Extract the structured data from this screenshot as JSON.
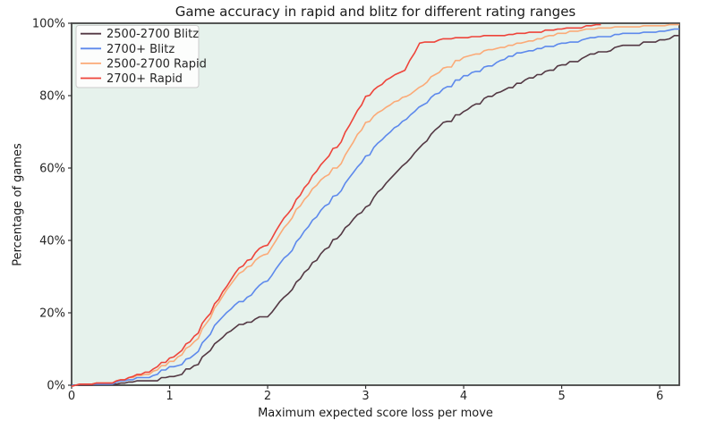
{
  "chart_data": {
    "type": "line",
    "title": "Game accuracy in rapid and blitz for different rating ranges",
    "xlabel": "Maximum expected score loss per move",
    "ylabel": "Percentage of games",
    "xlim": [
      0,
      6.2
    ],
    "ylim": [
      0,
      100
    ],
    "x_ticks": [
      0,
      1,
      2,
      3,
      4,
      5,
      6
    ],
    "y_tick_values": [
      0,
      20,
      40,
      60,
      80,
      100
    ],
    "y_tick_labels": [
      "0%",
      "20%",
      "40%",
      "60%",
      "80%",
      "100%"
    ],
    "grid": false,
    "legend_position": "upper-left",
    "colors": {
      "plot_background": "#e6f2ec",
      "spine": "#444444",
      "tick": "#333333",
      "text": "#262626",
      "legend_border": "#cccccc",
      "legend_background": "#ffffff"
    },
    "series": [
      {
        "name": "2500-2700 Blitz",
        "color": "#533843",
        "x": [
          0,
          0.25,
          0.5,
          0.75,
          1,
          1.25,
          1.5,
          1.75,
          2,
          2.25,
          2.5,
          2.75,
          3,
          3.25,
          3.5,
          3.75,
          4,
          4.25,
          4.5,
          4.75,
          5,
          5.25,
          5.5,
          5.75,
          6,
          6.2
        ],
        "y": [
          0,
          0.1,
          0.3,
          1,
          2,
          5,
          12.5,
          17,
          19,
          26.5,
          35,
          42,
          49,
          57,
          64.5,
          71.5,
          75.5,
          79.5,
          82.5,
          85.5,
          88,
          90.5,
          92.5,
          94,
          95.3,
          96.3
        ]
      },
      {
        "name": "2700+ Blitz",
        "color": "#5d89ec",
        "x": [
          0,
          0.25,
          0.5,
          0.75,
          1,
          1.25,
          1.5,
          1.75,
          2,
          2.25,
          2.5,
          2.75,
          3,
          3.25,
          3.5,
          3.75,
          4,
          4.25,
          4.5,
          4.75,
          5,
          5.25,
          5.5,
          5.75,
          6,
          6.2
        ],
        "y": [
          0,
          0.2,
          0.7,
          2,
          4.5,
          8,
          18,
          23.5,
          29,
          37.5,
          47,
          54,
          63,
          70,
          76,
          81,
          85.2,
          88,
          91,
          92.7,
          94,
          95.2,
          96.2,
          97.1,
          97.8,
          98.2
        ]
      },
      {
        "name": "2500-2700 Rapid",
        "color": "#fbaa77",
        "x": [
          0,
          0.25,
          0.5,
          0.75,
          1,
          1.25,
          1.5,
          1.75,
          2,
          2.25,
          2.5,
          2.75,
          3,
          3.25,
          3.5,
          3.75,
          4,
          4.25,
          4.5,
          4.75,
          5,
          5.25,
          5.5,
          5.75,
          6,
          6.2
        ],
        "y": [
          0,
          0.3,
          1,
          3,
          6,
          11.5,
          23,
          32,
          36.5,
          46.5,
          55.5,
          61.5,
          72.5,
          77.5,
          81.5,
          86.5,
          90.5,
          92.3,
          93.8,
          95.4,
          96.8,
          98,
          98.7,
          99.1,
          99.4,
          99.6
        ]
      },
      {
        "name": "2700+ Rapid",
        "color": "#ee443a",
        "x": [
          0,
          0.25,
          0.5,
          0.75,
          1,
          1.25,
          1.5,
          1.75,
          2,
          2.25,
          2.5,
          2.75,
          3,
          3.25,
          3.4,
          3.55,
          3.75,
          4,
          4.25,
          4.5,
          4.75,
          5,
          5.2,
          5.4
        ],
        "y": [
          0,
          0.3,
          1,
          3.5,
          7,
          13,
          24,
          33.5,
          39,
          49,
          59.5,
          67.5,
          79.5,
          85,
          87.5,
          94.5,
          95.5,
          96,
          96.4,
          96.8,
          97.4,
          98.2,
          98.9,
          99.6
        ]
      }
    ]
  }
}
